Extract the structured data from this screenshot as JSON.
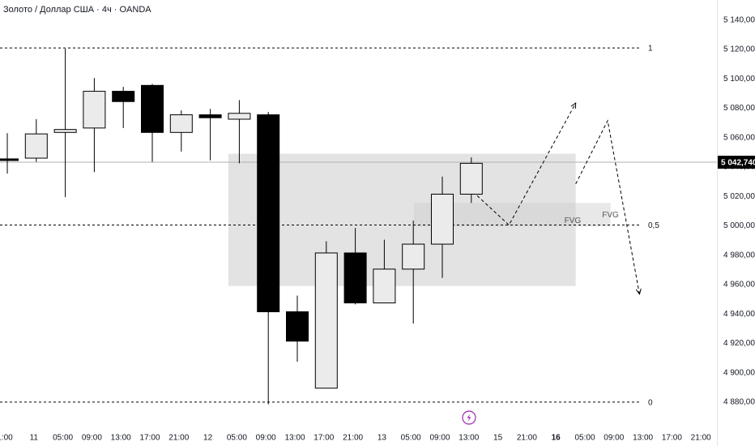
{
  "header": {
    "title": "Золото / Доллар США · 4ч · OANDA"
  },
  "colors": {
    "background": "#ffffff",
    "bull_body": "#ebebeb",
    "bear_body": "#000000",
    "wick": "#000000",
    "zone_fill": "#cccccc",
    "price_label_bg": "#000000",
    "text": "#131722"
  },
  "chart_data": {
    "type": "candlestick",
    "symbol": "Золото / Доллар США",
    "timeframe": "4ч",
    "source": "OANDA",
    "y_axis": {
      "ticks": [
        4880,
        4900,
        4920,
        4940,
        4960,
        4980,
        5000,
        5020,
        5040,
        5060,
        5080,
        5100,
        5120,
        5140
      ],
      "tick_labels": [
        "4 880,000",
        "4 900,000",
        "4 920,000",
        "4 940,000",
        "4 960,000",
        "4 980,000",
        "5 000,000",
        "5 020,000",
        "5 040,000",
        "5 060,000",
        "5 080,000",
        "5 100,000",
        "5 120,000",
        "5 140,000"
      ],
      "range": [
        4867,
        5148
      ]
    },
    "x_axis": {
      "tick_labels": [
        "1:00",
        "11",
        "05:00",
        "09:00",
        "13:00",
        "17:00",
        "21:00",
        "12",
        "05:00",
        "09:00",
        "13:00",
        "17:00",
        "21:00",
        "13",
        "05:00",
        "09:00",
        "13:00",
        "15",
        "21:00",
        "16",
        "05:00",
        "09:00",
        "13:00",
        "17:00",
        "21:00"
      ],
      "bold_labels": [
        "16"
      ]
    },
    "candles": [
      {
        "open": 5045.0,
        "high": 5062.5,
        "low": 5035.0,
        "close": 5044.0
      },
      {
        "open": 5045.5,
        "high": 5072.0,
        "low": 5043.0,
        "close": 5062.0
      },
      {
        "open": 5063.0,
        "high": 5120.0,
        "low": 5019.0,
        "close": 5065.0
      },
      {
        "open": 5066.0,
        "high": 5100.0,
        "low": 5036.0,
        "close": 5091.0
      },
      {
        "open": 5091.0,
        "high": 5094.0,
        "low": 5066.0,
        "close": 5084.0
      },
      {
        "open": 5095.0,
        "high": 5096.0,
        "low": 5043.0,
        "close": 5063.0
      },
      {
        "open": 5063.0,
        "high": 5078.0,
        "low": 5050.0,
        "close": 5075.0
      },
      {
        "open": 5075.0,
        "high": 5079.0,
        "low": 5044.0,
        "close": 5073.0
      },
      {
        "open": 5072.0,
        "high": 5085.0,
        "low": 5042.0,
        "close": 5076.0
      },
      {
        "open": 5075.0,
        "high": 5077.0,
        "low": 4878.0,
        "close": 4941.0
      },
      {
        "open": 4941.0,
        "high": 4952.0,
        "low": 4907.0,
        "close": 4921.0
      },
      {
        "open": 4889.0,
        "high": 4989.0,
        "low": 4889.0,
        "close": 4981.0
      },
      {
        "open": 4981.0,
        "high": 4998.0,
        "low": 4946.0,
        "close": 4947.0
      },
      {
        "open": 4947.0,
        "high": 4990.0,
        "low": 4947.0,
        "close": 4970.0
      },
      {
        "open": 4970.0,
        "high": 5003.0,
        "low": 4933.0,
        "close": 4987.0
      },
      {
        "open": 4987.0,
        "high": 5033.0,
        "low": 4964.0,
        "close": 5021.0
      },
      {
        "open": 5021.0,
        "high": 5046.0,
        "low": 5015.0,
        "close": 5042.0
      }
    ],
    "current_price": {
      "value": 5042.74,
      "label": "5 042,740"
    },
    "levels": [
      {
        "label": "1",
        "value": 5120.5
      },
      {
        "label": "0,5",
        "value": 5000.0
      },
      {
        "label": "0",
        "value": 4879.5
      }
    ],
    "zones": [
      {
        "name": "range-zone",
        "from_candle": 8,
        "to_candle": 19.6,
        "top": 5048.5,
        "bottom": 4958.5
      },
      {
        "name": "fvg-zone",
        "from_candle": 14.4,
        "to_candle": 20.8,
        "top": 5015.0,
        "bottom": 4999.0,
        "label": "FVG"
      }
    ],
    "fvg_labels": [
      {
        "text": "FVG",
        "at_candle": 19.6,
        "value": 5003.5
      },
      {
        "text": "FVG",
        "at_candle": 20.9,
        "value": 5007.5
      }
    ],
    "projection_path": [
      {
        "at_candle": 16.2,
        "value": 5020.0
      },
      {
        "at_candle": 17.3,
        "value": 5000.0
      },
      {
        "at_candle": 19.6,
        "value": 5083.0
      },
      {
        "at_candle": 19.6,
        "value": 5028.0
      },
      {
        "at_candle": 20.7,
        "value": 5071.0
      },
      {
        "at_candle": 21.8,
        "value": 4953.0
      }
    ]
  }
}
